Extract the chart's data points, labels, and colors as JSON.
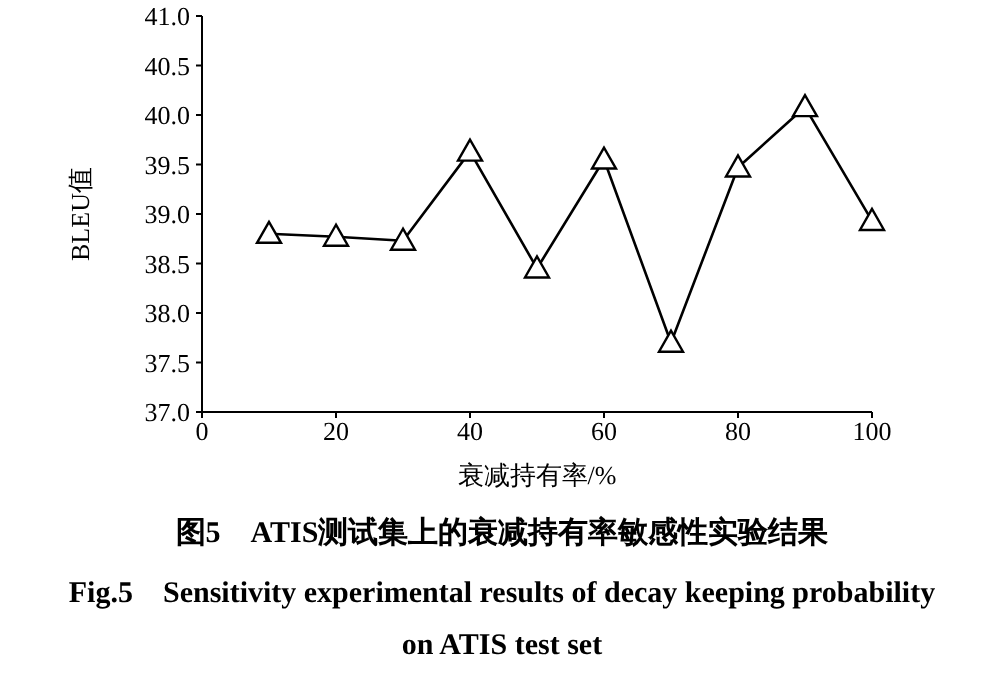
{
  "chart_data": {
    "type": "line",
    "xlabel": "衰减持有率/%",
    "ylabel": "BLEU值",
    "x": [
      10,
      20,
      30,
      40,
      50,
      60,
      70,
      80,
      90,
      100
    ],
    "series": [
      {
        "color": "#000000",
        "values": [
          38.8,
          38.77,
          38.73,
          39.63,
          38.45,
          39.55,
          37.7,
          39.47,
          40.08,
          38.93
        ]
      }
    ],
    "xlim": [
      0,
      100
    ],
    "xticks": [
      0,
      20,
      40,
      60,
      80,
      100
    ],
    "ylim": [
      37,
      41
    ],
    "yticks": [
      {
        "value": 37,
        "label": "37.0"
      },
      {
        "value": 37.5,
        "label": "37.5"
      },
      {
        "value": 38,
        "label": "38.0"
      },
      {
        "value": 38.5,
        "label": "38.5"
      },
      {
        "value": 39,
        "label": "39.0"
      },
      {
        "value": 39.5,
        "label": "39.5"
      },
      {
        "value": 40,
        "label": "40.0"
      },
      {
        "value": 40.5,
        "label": "40.5"
      },
      {
        "value": 41,
        "label": "41.0"
      }
    ],
    "grid": false,
    "legend": false,
    "marker": "triangle",
    "line_style": "solid",
    "annotations": [
      "图5　ATIS测试集上的衰减持有率敏感性实验结果",
      "Fig.5　Sensitivity experimental results of decay keeping probability on ATIS test set"
    ]
  }
}
